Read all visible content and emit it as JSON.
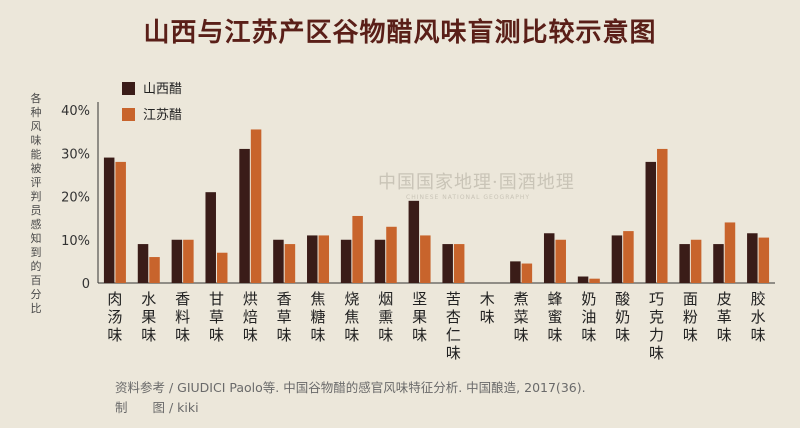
{
  "chart_data": {
    "type": "bar",
    "title": "山西与江苏产区谷物醋风味盲测比较示意图",
    "ylabel": "各种风味能被评判员感知到的百分比",
    "yticks": [
      "0",
      "10%",
      "20%",
      "30%",
      "40%"
    ],
    "ylim": [
      0,
      40
    ],
    "legend_position": "top-left",
    "categories": [
      "肉汤味",
      "水果味",
      "香料味",
      "甘草味",
      "烘焙味",
      "香草味",
      "焦糖味",
      "烧焦味",
      "烟熏味",
      "坚果味",
      "苦杏仁味",
      "木味",
      "煮菜味",
      "蜂蜜味",
      "奶油味",
      "酸奶味",
      "巧克力味",
      "面粉味",
      "皮革味",
      "胶水味"
    ],
    "series": [
      {
        "name": "山西醋",
        "color": "#3a1c18",
        "values": [
          29,
          9,
          10,
          21,
          31,
          10,
          11,
          10,
          10,
          19,
          9,
          0,
          5,
          11.5,
          1.5,
          11,
          28,
          9,
          9,
          11.5
        ]
      },
      {
        "name": "江苏醋",
        "color": "#c8642c",
        "values": [
          28,
          6,
          10,
          7,
          35.5,
          9,
          11,
          15.5,
          13,
          11,
          9,
          0,
          4.5,
          10,
          1,
          12,
          31,
          10,
          14,
          10.5
        ]
      }
    ]
  },
  "watermark": {
    "main": "中国国家地理·国酒地理",
    "sub": "CHINESE NATIONAL GEOGRAPHY"
  },
  "footer": {
    "source": "资料参考 / GIUDICI Paolo等. 中国谷物醋的感官风味特征分析. 中国酿造, 2017(36).",
    "credit": "制　　图 / kiki"
  }
}
